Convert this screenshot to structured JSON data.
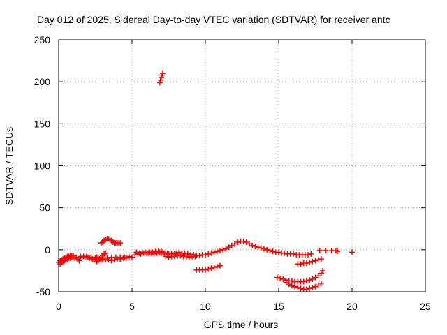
{
  "chart_data": {
    "type": "scatter",
    "title": "Day 012 of 2025, Sidereal Day-to-day VTEC variation (SDTVAR) for receiver antc",
    "xlabel": "GPS time / hours",
    "ylabel": "SDTVAR / TECUs",
    "xlim": [
      0,
      25
    ],
    "ylim": [
      -50,
      250
    ],
    "xticks": [
      0,
      5,
      10,
      15,
      20,
      25
    ],
    "yticks": [
      -50,
      0,
      50,
      100,
      150,
      200,
      250
    ],
    "xtick_labels": [
      "0",
      "5",
      "10",
      "15",
      "20",
      "25"
    ],
    "ytick_labels": [
      "-50",
      "0",
      "50",
      "100",
      "150",
      "200",
      "250"
    ],
    "grid": true,
    "marker": "+",
    "series": [
      {
        "name": "SDTVAR",
        "color": "#ff0000",
        "points": [
          [
            0.0,
            -15
          ],
          [
            0.1,
            -13
          ],
          [
            0.2,
            -12
          ],
          [
            0.3,
            -11
          ],
          [
            0.4,
            -10
          ],
          [
            0.5,
            -9
          ],
          [
            0.6,
            -8
          ],
          [
            0.7,
            -8
          ],
          [
            0.8,
            -7
          ],
          [
            0.9,
            -7
          ],
          [
            1.0,
            -7
          ],
          [
            0.1,
            -17
          ],
          [
            0.2,
            -15
          ],
          [
            0.3,
            -14
          ],
          [
            0.4,
            -13
          ],
          [
            0.5,
            -12
          ],
          [
            0.6,
            -11
          ],
          [
            0.7,
            -10
          ],
          [
            0.8,
            -10
          ],
          [
            0.9,
            -9
          ],
          [
            1.0,
            -9
          ],
          [
            1.1,
            -10
          ],
          [
            1.2,
            -9
          ],
          [
            1.3,
            -11
          ],
          [
            1.4,
            -13
          ],
          [
            1.5,
            -8
          ],
          [
            1.6,
            -9
          ],
          [
            1.7,
            -8
          ],
          [
            1.8,
            -9
          ],
          [
            1.9,
            -8
          ],
          [
            2.0,
            -9
          ],
          [
            2.1,
            -10
          ],
          [
            2.2,
            -9
          ],
          [
            2.3,
            -11
          ],
          [
            2.4,
            -12
          ],
          [
            2.5,
            -10
          ],
          [
            2.6,
            -9
          ],
          [
            2.7,
            -10
          ],
          [
            2.8,
            -11
          ],
          [
            2.9,
            -12
          ],
          [
            2.6,
            -14
          ],
          [
            2.7,
            -13
          ],
          [
            2.8,
            -11
          ],
          [
            2.9,
            -9
          ],
          [
            3.0,
            -7
          ],
          [
            3.1,
            -5
          ],
          [
            3.2,
            -4
          ],
          [
            3.0,
            -11
          ],
          [
            3.2,
            -12
          ],
          [
            3.4,
            -12
          ],
          [
            3.6,
            -13
          ],
          [
            3.8,
            -12
          ],
          [
            4.0,
            -11
          ],
          [
            4.2,
            -11
          ],
          [
            4.4,
            -10
          ],
          [
            4.6,
            -10
          ],
          [
            4.8,
            -9
          ],
          [
            5.0,
            -9
          ],
          [
            3.0,
            -12
          ],
          [
            3.3,
            -10
          ],
          [
            3.6,
            -9
          ],
          [
            3.9,
            -9
          ],
          [
            4.2,
            -9
          ],
          [
            4.5,
            -9
          ],
          [
            4.8,
            -8
          ],
          [
            2.9,
            8
          ],
          [
            3.0,
            9
          ],
          [
            3.1,
            11
          ],
          [
            3.2,
            12
          ],
          [
            3.3,
            13
          ],
          [
            3.4,
            13
          ],
          [
            3.5,
            12
          ],
          [
            3.6,
            11
          ],
          [
            3.7,
            9
          ],
          [
            3.8,
            8
          ],
          [
            3.9,
            8
          ],
          [
            4.0,
            8
          ],
          [
            4.1,
            8
          ],
          [
            4.2,
            8
          ],
          [
            5.2,
            -6
          ],
          [
            5.4,
            -5
          ],
          [
            5.6,
            -5
          ],
          [
            5.8,
            -4
          ],
          [
            6.0,
            -4
          ],
          [
            6.2,
            -3
          ],
          [
            6.4,
            -3
          ],
          [
            6.6,
            -2
          ],
          [
            6.8,
            -2
          ],
          [
            7.0,
            -2
          ],
          [
            5.3,
            -3
          ],
          [
            5.5,
            -4
          ],
          [
            5.7,
            -3
          ],
          [
            5.9,
            -3
          ],
          [
            6.1,
            -4
          ],
          [
            6.3,
            -4
          ],
          [
            6.5,
            -5
          ],
          [
            6.7,
            -4
          ],
          [
            6.9,
            -3
          ],
          [
            7.0,
            -4
          ],
          [
            7.1,
            -3
          ],
          [
            7.2,
            -4
          ],
          [
            7.3,
            -5
          ],
          [
            7.4,
            -4
          ],
          [
            7.5,
            -5
          ],
          [
            7.6,
            -6
          ],
          [
            7.7,
            -5
          ],
          [
            7.8,
            -6
          ],
          [
            7.9,
            -5
          ],
          [
            8.0,
            -5
          ],
          [
            7.3,
            -8
          ],
          [
            7.5,
            -9
          ],
          [
            7.7,
            -8
          ],
          [
            7.9,
            -8
          ],
          [
            8.1,
            -7
          ],
          [
            8.3,
            -7
          ],
          [
            8.5,
            -8
          ],
          [
            8.7,
            -8
          ],
          [
            8.9,
            -9
          ],
          [
            9.1,
            -8
          ],
          [
            9.3,
            -8
          ],
          [
            8.2,
            -3
          ],
          [
            8.4,
            -4
          ],
          [
            8.6,
            -5
          ],
          [
            8.8,
            -5
          ],
          [
            9.0,
            -6
          ],
          [
            9.2,
            -6
          ],
          [
            9.4,
            -7
          ],
          [
            9.6,
            -7
          ],
          [
            9.8,
            -6
          ],
          [
            10.0,
            -6
          ],
          [
            10.2,
            -5
          ],
          [
            10.4,
            -4
          ],
          [
            10.6,
            -3
          ],
          [
            10.8,
            -2
          ],
          [
            11.0,
            -1
          ],
          [
            11.2,
            0
          ],
          [
            11.4,
            1
          ],
          [
            11.6,
            3
          ],
          [
            11.8,
            5
          ],
          [
            12.0,
            7
          ],
          [
            12.2,
            9
          ],
          [
            12.4,
            10
          ],
          [
            12.6,
            10
          ],
          [
            12.8,
            9
          ],
          [
            13.0,
            7
          ],
          [
            13.2,
            5
          ],
          [
            13.4,
            4
          ],
          [
            13.6,
            3
          ],
          [
            13.8,
            2
          ],
          [
            14.0,
            1
          ],
          [
            14.2,
            0
          ],
          [
            14.4,
            -1
          ],
          [
            14.6,
            -2
          ],
          [
            14.8,
            -3
          ],
          [
            15.0,
            -3
          ],
          [
            15.2,
            -4
          ],
          [
            15.4,
            -4
          ],
          [
            15.6,
            -5
          ],
          [
            15.8,
            -5
          ],
          [
            16.0,
            -5
          ],
          [
            16.2,
            -6
          ],
          [
            16.4,
            -6
          ],
          [
            16.6,
            -6
          ],
          [
            16.8,
            -6
          ],
          [
            17.0,
            -6
          ],
          [
            17.2,
            -5
          ],
          [
            16.3,
            -17
          ],
          [
            16.5,
            -17
          ],
          [
            16.7,
            -16
          ],
          [
            16.9,
            -16
          ],
          [
            17.1,
            -15
          ],
          [
            17.3,
            -14
          ],
          [
            17.5,
            -13
          ],
          [
            17.7,
            -12
          ],
          [
            17.9,
            -11
          ],
          [
            17.8,
            -1
          ],
          [
            18.2,
            -1
          ],
          [
            18.6,
            -1
          ],
          [
            18.9,
            -1
          ],
          [
            19.0,
            -2
          ],
          [
            20.0,
            -3
          ],
          [
            14.9,
            -33
          ],
          [
            15.1,
            -34
          ],
          [
            15.3,
            -35
          ],
          [
            15.5,
            -36
          ],
          [
            15.7,
            -37
          ],
          [
            15.9,
            -37
          ],
          [
            16.1,
            -38
          ],
          [
            16.3,
            -38
          ],
          [
            16.5,
            -38
          ],
          [
            16.7,
            -38
          ],
          [
            16.9,
            -37
          ],
          [
            17.1,
            -36
          ],
          [
            17.3,
            -35
          ],
          [
            17.5,
            -33
          ],
          [
            17.7,
            -31
          ],
          [
            17.9,
            -28
          ],
          [
            18.0,
            -25
          ],
          [
            15.5,
            -39
          ],
          [
            15.7,
            -41
          ],
          [
            15.9,
            -43
          ],
          [
            16.1,
            -44
          ],
          [
            16.3,
            -45
          ],
          [
            16.5,
            -46
          ],
          [
            16.7,
            -47
          ],
          [
            16.9,
            -47
          ],
          [
            17.1,
            -46
          ],
          [
            17.3,
            -45
          ],
          [
            17.5,
            -44
          ],
          [
            17.7,
            -42
          ],
          [
            17.9,
            -40
          ],
          [
            9.4,
            -24
          ],
          [
            9.6,
            -24
          ],
          [
            9.8,
            -24
          ],
          [
            10.0,
            -24
          ],
          [
            10.2,
            -23
          ],
          [
            10.4,
            -22
          ],
          [
            10.6,
            -21
          ],
          [
            10.8,
            -20
          ],
          [
            11.0,
            -19
          ],
          [
            6.9,
            199
          ],
          [
            6.95,
            202
          ],
          [
            7.0,
            205
          ],
          [
            7.05,
            208
          ],
          [
            7.1,
            210
          ]
        ]
      }
    ]
  }
}
